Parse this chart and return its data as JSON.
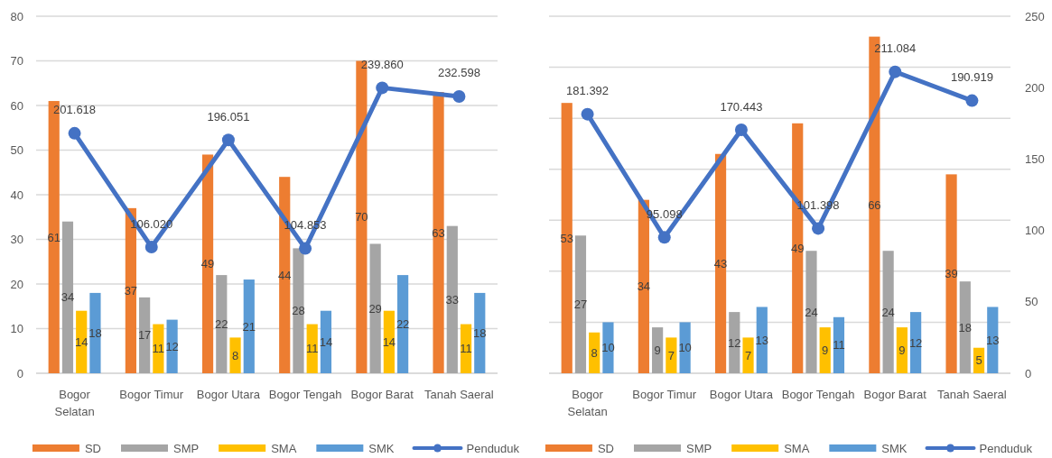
{
  "chart_data": [
    {
      "type": "bar",
      "categories": [
        "Bogor Selatan",
        "Bogor Timur",
        "Bogor Utara",
        "Bogor Tengah",
        "Bogor Barat",
        "Tanah Saeral"
      ],
      "series": [
        {
          "name": "SD",
          "color": "#ed7d31",
          "values": [
            61,
            37,
            49,
            44,
            70,
            63
          ]
        },
        {
          "name": "SMP",
          "color": "#a5a5a5",
          "values": [
            34,
            17,
            22,
            28,
            29,
            33
          ]
        },
        {
          "name": "SMA",
          "color": "#ffc000",
          "values": [
            14,
            11,
            8,
            11,
            14,
            11
          ]
        },
        {
          "name": "SMK",
          "color": "#5b9bd5",
          "values": [
            18,
            12,
            21,
            14,
            22,
            18
          ]
        },
        {
          "name": "Penduduk",
          "type": "line",
          "axis": "y2",
          "marker": "circle",
          "color": "#4472c4",
          "values": [
            201.618,
            106.02,
            196.051,
            104.853,
            239.86,
            232.598
          ],
          "value_labels": [
            "201.618",
            "106.020",
            "196.051",
            "104.853",
            "239.860",
            "232.598"
          ]
        }
      ],
      "ylim": [
        0,
        80
      ],
      "yticks": [
        0,
        10,
        20,
        30,
        40,
        50,
        60,
        70,
        80
      ],
      "y2lim": [
        0,
        300
      ],
      "grid": "y",
      "legend": "bottom",
      "data_labels": true
    },
    {
      "type": "bar",
      "categories": [
        "Bogor Selatan",
        "Bogor Timur",
        "Bogor Utara",
        "Bogor Tengah",
        "Bogor Barat",
        "Tanah Saeral"
      ],
      "series": [
        {
          "name": "SD",
          "color": "#ed7d31",
          "values": [
            53,
            34,
            43,
            49,
            66,
            39
          ]
        },
        {
          "name": "SMP",
          "color": "#a5a5a5",
          "values": [
            27,
            9,
            12,
            24,
            24,
            18
          ]
        },
        {
          "name": "SMA",
          "color": "#ffc000",
          "values": [
            8,
            7,
            7,
            9,
            9,
            5
          ]
        },
        {
          "name": "SMK",
          "color": "#5b9bd5",
          "values": [
            10,
            10,
            13,
            11,
            12,
            13
          ]
        },
        {
          "name": "Penduduk",
          "type": "line",
          "axis": "y2",
          "marker": "circle",
          "color": "#4472c4",
          "values": [
            181.392,
            95.098,
            170.443,
            101.398,
            211.084,
            190.919
          ],
          "value_labels": [
            "181.392",
            "95.098",
            "170.443",
            "101.398",
            "211.084",
            "190.919"
          ]
        }
      ],
      "ylim": [
        0,
        70
      ],
      "yticks": [
        {
          "value": 0,
          "label": null
        },
        {
          "value": 10,
          "label": null
        },
        {
          "value": 20,
          "label": null
        },
        {
          "value": 30,
          "label": null
        },
        {
          "value": 40,
          "label": null
        },
        {
          "value": 50,
          "label": null
        },
        {
          "value": 60,
          "label": null
        },
        {
          "value": 70,
          "label": null
        }
      ],
      "y2lim": [
        0,
        250
      ],
      "y2ticks": [
        0,
        50,
        100,
        150,
        200,
        250
      ],
      "grid": "y",
      "legend": "bottom",
      "data_labels": true
    }
  ]
}
